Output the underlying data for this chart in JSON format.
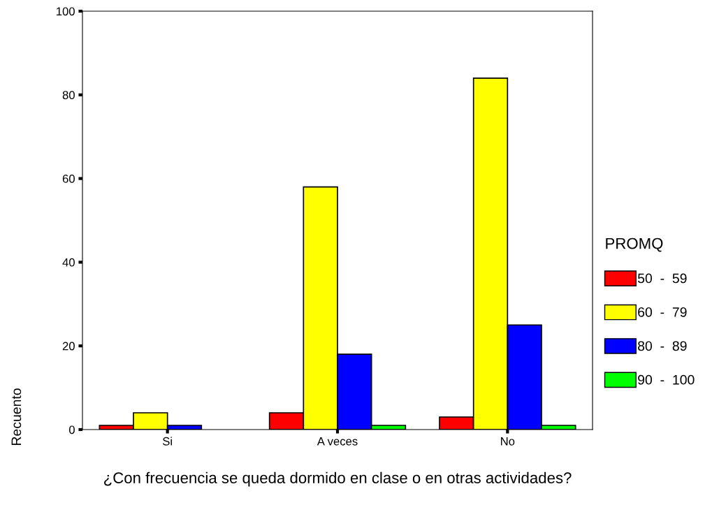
{
  "chart_data": {
    "type": "bar",
    "xlabel": "¿Con frecuencia se queda dormido en clase o en otras actividades?",
    "ylabel": "Recuento",
    "legend_title": "PROMQ",
    "categories": [
      "Si",
      "A veces",
      "No"
    ],
    "series": [
      {
        "name": "50  -  59",
        "color": "#ff0000",
        "values": [
          1,
          4,
          3
        ]
      },
      {
        "name": "60  -  79",
        "color": "#ffff00",
        "values": [
          4,
          58,
          84
        ]
      },
      {
        "name": "80  -  89",
        "color": "#0000ff",
        "values": [
          1,
          18,
          25
        ]
      },
      {
        "name": "90  -  100",
        "color": "#00ff00",
        "values": [
          null,
          1,
          1
        ]
      }
    ],
    "ylim": [
      0,
      100
    ],
    "yticks": [
      0,
      20,
      40,
      60,
      80,
      100
    ],
    "grid": false,
    "legend": "right"
  }
}
